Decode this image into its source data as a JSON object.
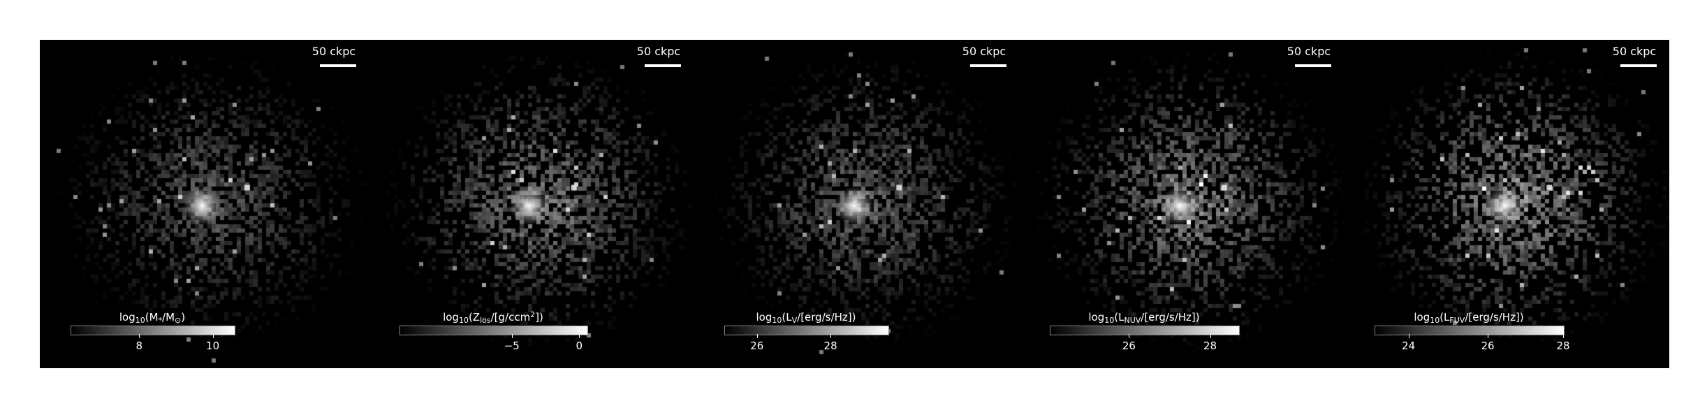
{
  "panels": [
    {
      "id": "mass",
      "scalebar_label": "50 ckpc",
      "colorbar_label": {
        "pre": "log",
        "sub": "10",
        "mid": "(M",
        "sub2": "*",
        "post": "/M",
        "sub3": "⊙",
        "end": ")"
      },
      "ticks": [
        "8",
        "10"
      ],
      "tick_fracs": [
        0.42,
        0.87
      ],
      "brightness": 0.55
    },
    {
      "id": "metal",
      "scalebar_label": "50 ckpc",
      "colorbar_label": {
        "pre": "log",
        "sub": "10",
        "mid": "(Z",
        "sub2": "los",
        "post": "/[g/ccm",
        "sup": "2",
        "end": "])"
      },
      "ticks": [
        "−5",
        "0"
      ],
      "tick_fracs": [
        0.6,
        0.96
      ],
      "brightness": 0.75
    },
    {
      "id": "lv",
      "scalebar_label": "50 ckpc",
      "colorbar_label": {
        "pre": "log",
        "sub": "10",
        "mid": "(L",
        "sub2": "V",
        "post": "/[erg/s/Hz])",
        "end": ""
      },
      "ticks": [
        "26",
        "28"
      ],
      "tick_fracs": [
        0.2,
        0.65
      ],
      "brightness": 0.6
    },
    {
      "id": "nuv",
      "scalebar_label": "50 ckpc",
      "colorbar_label": {
        "pre": "log",
        "sub": "10",
        "mid": "(L",
        "sub2": "NUV",
        "post": "/[erg/s/Hz])",
        "end": ""
      },
      "ticks": [
        "26",
        "28"
      ],
      "tick_fracs": [
        0.42,
        0.85
      ],
      "brightness": 0.8
    },
    {
      "id": "fuv",
      "scalebar_label": "50 ckpc",
      "colorbar_label": {
        "pre": "log",
        "sub": "10",
        "mid": "(L",
        "sub2": "FUV",
        "post": "/[erg/s/Hz])",
        "end": ""
      },
      "ticks": [
        "24",
        "26",
        "28"
      ],
      "tick_fracs": [
        0.18,
        0.6,
        1.0
      ],
      "brightness": 0.9
    }
  ]
}
